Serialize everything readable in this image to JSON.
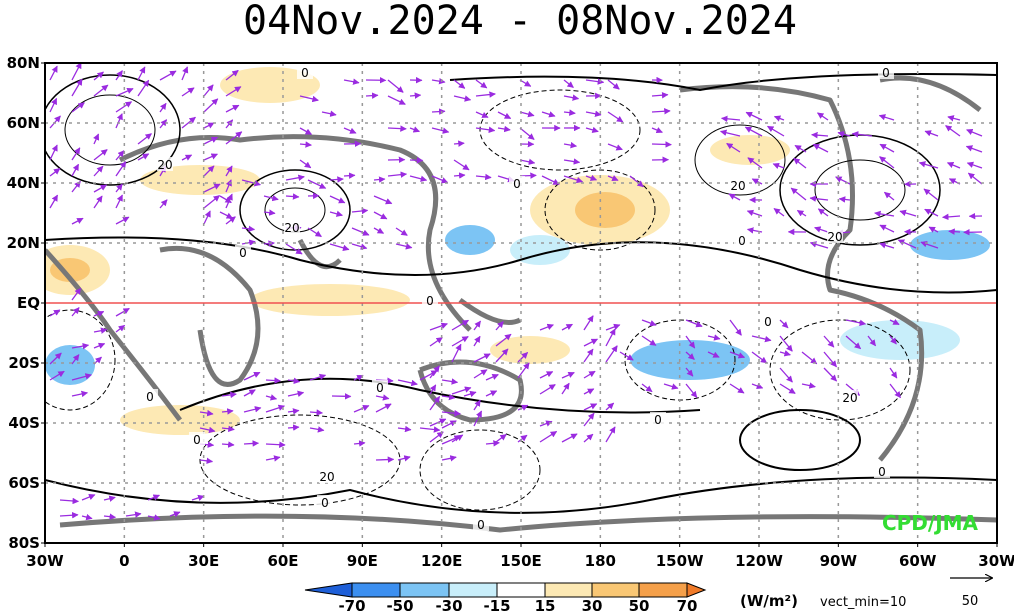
{
  "title": "04Nov.2024 - 08Nov.2024",
  "lat_labels": [
    "80N",
    "60N",
    "40N",
    "20N",
    "EQ",
    "20S",
    "40S",
    "60S",
    "80S"
  ],
  "lon_labels": [
    "30W",
    "0",
    "30E",
    "60E",
    "90E",
    "120E",
    "150E",
    "180",
    "150W",
    "120W",
    "90W",
    "60W",
    "30W"
  ],
  "contour_labels": [
    "0",
    "0",
    "0",
    "0",
    "0",
    "0",
    "0",
    "0",
    "0",
    "0",
    "0",
    "0",
    "0",
    "0",
    "20",
    "20",
    "20",
    "20",
    "20",
    "20"
  ],
  "colorbar": {
    "labels": [
      "-70",
      "-50",
      "-30",
      "-15",
      "15",
      "30",
      "50",
      "70"
    ],
    "colors": [
      "#1e5fd8",
      "#3c8ff0",
      "#7cc4f4",
      "#c8eefa",
      "#ffffff",
      "#fde9b4",
      "#f9c774",
      "#f5a04a",
      "#f07a28"
    ]
  },
  "units": "(W/m²)",
  "vector_note": "vect_min=10",
  "reference_vector": "50",
  "credit": "CPD/JMA"
}
